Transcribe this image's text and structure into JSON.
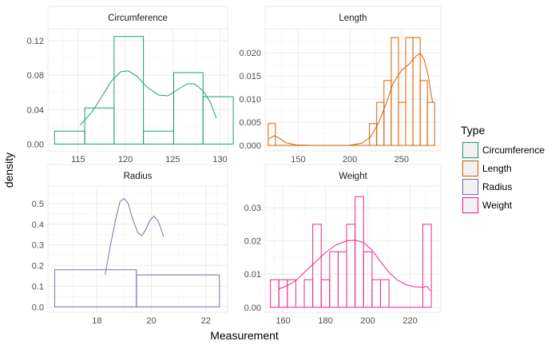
{
  "chart_data": {
    "type": "histogram",
    "xlabel": "Measurement",
    "ylabel": "density",
    "legend": {
      "title": "Type",
      "position": "right",
      "entries": [
        {
          "name": "Circumference",
          "color": "#1b9e77"
        },
        {
          "name": "Length",
          "color": "#d95f02"
        },
        {
          "name": "Radius",
          "color": "#7570b3"
        },
        {
          "name": "Weight",
          "color": "#e7298a"
        }
      ]
    },
    "panels": [
      {
        "title": "Circumference",
        "color": "#1b9e77",
        "xlim": [
          111.8,
          130.8
        ],
        "ylim": [
          -0.008,
          0.134
        ],
        "xticks": [
          115,
          120,
          125,
          130
        ],
        "yticks": [
          0,
          0.04,
          0.08,
          0.12
        ],
        "ytick_labels": [
          "0.00",
          "0.04",
          "0.08",
          "0.12"
        ],
        "bins": [
          {
            "x0": 112.5,
            "x1": 115.7,
            "y": 0.015
          },
          {
            "x0": 115.7,
            "x1": 118.8,
            "y": 0.042
          },
          {
            "x0": 118.8,
            "x1": 121.9,
            "y": 0.125
          },
          {
            "x0": 121.9,
            "x1": 125.1,
            "y": 0.015
          },
          {
            "x0": 125.1,
            "x1": 128.2,
            "y": 0.083
          },
          {
            "x0": 128.2,
            "x1": 131.4,
            "y": 0.055
          }
        ],
        "density": [
          [
            115.2,
            0.022
          ],
          [
            116.5,
            0.038
          ],
          [
            117.5,
            0.055
          ],
          [
            118.5,
            0.073
          ],
          [
            119.5,
            0.084
          ],
          [
            120.3,
            0.085
          ],
          [
            121.2,
            0.079
          ],
          [
            122.3,
            0.066
          ],
          [
            123.5,
            0.057
          ],
          [
            124.5,
            0.056
          ],
          [
            125.5,
            0.063
          ],
          [
            126.5,
            0.07
          ],
          [
            127.3,
            0.07
          ],
          [
            128.2,
            0.062
          ],
          [
            129.0,
            0.048
          ],
          [
            129.6,
            0.03
          ]
        ]
      },
      {
        "title": "Length",
        "color": "#d95f02",
        "xlim": [
          118,
          288
        ],
        "ylim": [
          -0.0012,
          0.0252
        ],
        "xticks": [
          150,
          200,
          250
        ],
        "yticks": [
          0,
          0.005,
          0.01,
          0.015,
          0.02
        ],
        "ytick_labels": [
          "0.000",
          "0.005",
          "0.010",
          "0.015",
          "0.020"
        ],
        "bins": [
          {
            "x0": 121,
            "x1": 128,
            "y": 0.0047
          },
          {
            "x0": 128,
            "x1": 135,
            "y": 0.0
          },
          {
            "x0": 135,
            "x1": 142,
            "y": 0.0
          },
          {
            "x0": 142,
            "x1": 149,
            "y": 0.0
          },
          {
            "x0": 149,
            "x1": 156,
            "y": 0.0
          },
          {
            "x0": 156,
            "x1": 163,
            "y": 0.0
          },
          {
            "x0": 163,
            "x1": 170,
            "y": 0.0
          },
          {
            "x0": 170,
            "x1": 177,
            "y": 0.0
          },
          {
            "x0": 177,
            "x1": 184,
            "y": 0.0
          },
          {
            "x0": 184,
            "x1": 191,
            "y": 0.0
          },
          {
            "x0": 191,
            "x1": 198,
            "y": 0.0
          },
          {
            "x0": 198,
            "x1": 205,
            "y": 0.0
          },
          {
            "x0": 205,
            "x1": 212,
            "y": 0.0
          },
          {
            "x0": 212,
            "x1": 219,
            "y": 0.0
          },
          {
            "x0": 219,
            "x1": 226,
            "y": 0.0047
          },
          {
            "x0": 226,
            "x1": 233,
            "y": 0.0093
          },
          {
            "x0": 233,
            "x1": 240,
            "y": 0.014
          },
          {
            "x0": 240,
            "x1": 247,
            "y": 0.0233
          },
          {
            "x0": 247,
            "x1": 254,
            "y": 0.0093
          },
          {
            "x0": 254,
            "x1": 261,
            "y": 0.0233
          },
          {
            "x0": 261,
            "x1": 268,
            "y": 0.0233
          },
          {
            "x0": 268,
            "x1": 275,
            "y": 0.014
          },
          {
            "x0": 275,
            "x1": 282,
            "y": 0.0093
          }
        ],
        "density": [
          [
            122,
            0.0015
          ],
          [
            127,
            0.0021
          ],
          [
            132,
            0.0015
          ],
          [
            138,
            0.0006
          ],
          [
            148,
            0.0001
          ],
          [
            165,
            0.0
          ],
          [
            200,
            0.0
          ],
          [
            212,
            0.0005
          ],
          [
            220,
            0.0018
          ],
          [
            228,
            0.005
          ],
          [
            235,
            0.009
          ],
          [
            242,
            0.0135
          ],
          [
            250,
            0.0162
          ],
          [
            257,
            0.0175
          ],
          [
            264,
            0.0193
          ],
          [
            268,
            0.0199
          ],
          [
            272,
            0.0185
          ],
          [
            276,
            0.0148
          ],
          [
            280,
            0.0094
          ]
        ]
      },
      {
        "title": "Radius",
        "color": "#7570b3",
        "xlim": [
          16.2,
          22.8
        ],
        "ylim": [
          -0.026,
          0.585
        ],
        "xticks": [
          18,
          20,
          22
        ],
        "yticks": [
          0,
          0.1,
          0.2,
          0.3,
          0.4,
          0.5
        ],
        "ytick_labels": [
          "0.0",
          "0.1",
          "0.2",
          "0.3",
          "0.4",
          "0.5"
        ],
        "bins": [
          {
            "x0": 16.45,
            "x1": 19.45,
            "y": 0.18
          },
          {
            "x0": 19.45,
            "x1": 22.5,
            "y": 0.155
          }
        ],
        "density": [
          [
            18.3,
            0.155
          ],
          [
            18.5,
            0.3
          ],
          [
            18.7,
            0.43
          ],
          [
            18.85,
            0.51
          ],
          [
            19.0,
            0.525
          ],
          [
            19.15,
            0.5
          ],
          [
            19.3,
            0.43
          ],
          [
            19.5,
            0.36
          ],
          [
            19.65,
            0.345
          ],
          [
            19.8,
            0.375
          ],
          [
            19.95,
            0.42
          ],
          [
            20.1,
            0.44
          ],
          [
            20.25,
            0.415
          ],
          [
            20.35,
            0.38
          ],
          [
            20.45,
            0.34
          ]
        ]
      },
      {
        "title": "Weight",
        "color": "#e7298a",
        "xlim": [
          151.5,
          234.5
        ],
        "ylim": [
          -0.0015,
          0.0365
        ],
        "xticks": [
          160,
          180,
          200,
          220
        ],
        "yticks": [
          0,
          0.01,
          0.02,
          0.03
        ],
        "ytick_labels": [
          "0.00",
          "0.01",
          "0.02",
          "0.03"
        ],
        "bins": [
          {
            "x0": 154,
            "x1": 158,
            "y": 0.0083
          },
          {
            "x0": 158,
            "x1": 162,
            "y": 0.0083
          },
          {
            "x0": 162,
            "x1": 166,
            "y": 0.0083
          },
          {
            "x0": 166,
            "x1": 170,
            "y": 0.0
          },
          {
            "x0": 170,
            "x1": 174,
            "y": 0.0083
          },
          {
            "x0": 174,
            "x1": 178,
            "y": 0.025
          },
          {
            "x0": 178,
            "x1": 182,
            "y": 0.0083
          },
          {
            "x0": 182,
            "x1": 186,
            "y": 0.0167
          },
          {
            "x0": 186,
            "x1": 190,
            "y": 0.0167
          },
          {
            "x0": 190,
            "x1": 194,
            "y": 0.025
          },
          {
            "x0": 194,
            "x1": 198,
            "y": 0.0333
          },
          {
            "x0": 198,
            "x1": 202,
            "y": 0.0167
          },
          {
            "x0": 202,
            "x1": 206,
            "y": 0.0083
          },
          {
            "x0": 206,
            "x1": 210,
            "y": 0.0083
          },
          {
            "x0": 210,
            "x1": 214,
            "y": 0.0
          },
          {
            "x0": 214,
            "x1": 218,
            "y": 0.0
          },
          {
            "x0": 218,
            "x1": 222,
            "y": 0.0
          },
          {
            "x0": 222,
            "x1": 226,
            "y": 0.0
          },
          {
            "x0": 226,
            "x1": 230,
            "y": 0.025
          }
        ],
        "density": [
          [
            158,
            0.0055
          ],
          [
            162,
            0.0065
          ],
          [
            166,
            0.008
          ],
          [
            170,
            0.0105
          ],
          [
            175,
            0.0135
          ],
          [
            180,
            0.0165
          ],
          [
            185,
            0.0188
          ],
          [
            190,
            0.02
          ],
          [
            194,
            0.0202
          ],
          [
            198,
            0.0195
          ],
          [
            202,
            0.0172
          ],
          [
            206,
            0.0138
          ],
          [
            210,
            0.0105
          ],
          [
            214,
            0.0082
          ],
          [
            218,
            0.0068
          ],
          [
            222,
            0.0062
          ],
          [
            226,
            0.006
          ],
          [
            228,
            0.0063
          ],
          [
            229.5,
            0.005
          ]
        ]
      }
    ]
  }
}
